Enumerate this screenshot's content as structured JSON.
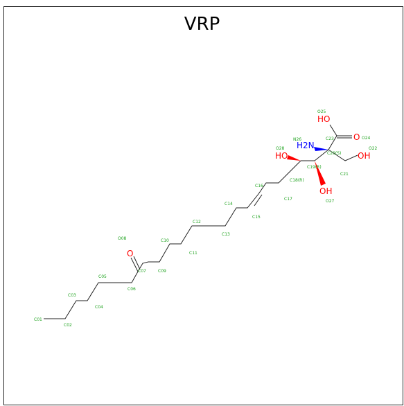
{
  "title": "VRP",
  "colors": {
    "atom_label": "#1fa31f",
    "oxygen": "#ff0000",
    "nitrogen": "#0000ff",
    "bond": "#222222"
  },
  "atom_labels": {
    "c01": "C01",
    "c02": "C02",
    "c03": "C03",
    "c04": "C04",
    "c05": "C05",
    "c06": "C06",
    "c07": "C07",
    "o08": "O08",
    "c09": "C09",
    "c10": "C10",
    "c11": "C11",
    "c12": "C12",
    "c13": "C13",
    "c14": "C14",
    "c15": "C15",
    "c16": "C16",
    "c17": "C17",
    "c18": "C18(R)",
    "c19": "C19(R)",
    "c20": "C20(S)",
    "c21": "C21",
    "o22": "O22",
    "c23": "C23",
    "o24": "O24",
    "o25": "O25",
    "n26": "N26",
    "o27": "O27",
    "o28": "O28"
  },
  "heteroatom_symbols": {
    "o08": "O",
    "o22": "OH",
    "o24": "O",
    "o25": "HO",
    "n26": "H2N",
    "o27": "OH",
    "o28": "HO"
  }
}
